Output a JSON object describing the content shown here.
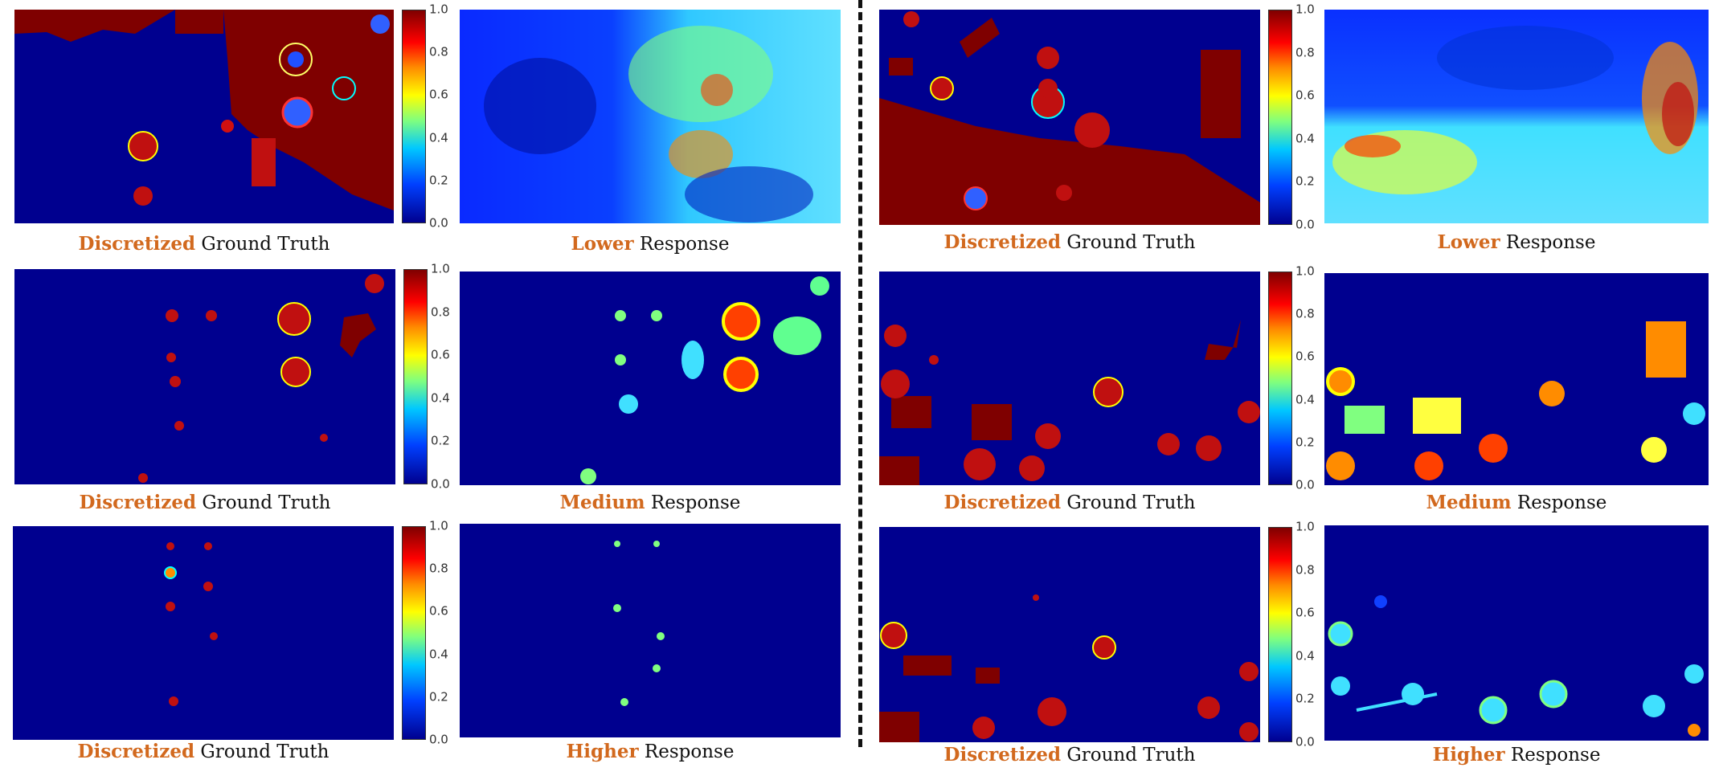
{
  "colorbar_ticks": [
    "1.0",
    "0.8",
    "0.6",
    "0.4",
    "0.2",
    "0.0"
  ],
  "rows": [
    {
      "gt_highlight": "Discretized",
      "gt_rest": " Ground Truth",
      "resp_highlight": "Lower",
      "resp_rest": " Response"
    },
    {
      "gt_highlight": "Discretized",
      "gt_rest": " Ground Truth",
      "resp_highlight": "Medium",
      "resp_rest": " Response"
    },
    {
      "gt_highlight": "Discretized",
      "gt_rest": " Ground Truth",
      "resp_highlight": "Higher",
      "resp_rest": " Response"
    }
  ],
  "colors": {
    "background": "#00008f",
    "high": "#7f0000",
    "highlight_text": "#d2691e"
  }
}
